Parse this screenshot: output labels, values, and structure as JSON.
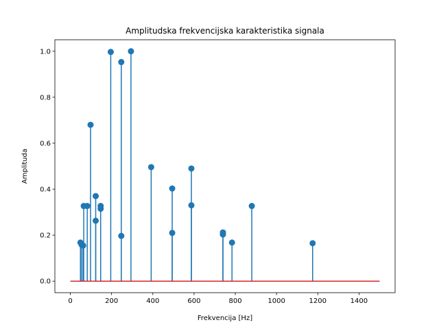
{
  "chart_data": {
    "type": "stem",
    "title": "Amplitudska frekvencijska karakteristika signala",
    "xlabel": "Frekvencija [Hz]",
    "ylabel": "Amplituda",
    "xlim": [
      -75,
      1575
    ],
    "ylim": [
      -0.05,
      1.05
    ],
    "xticks": [
      0,
      200,
      400,
      600,
      800,
      1000,
      1200,
      1400
    ],
    "yticks": [
      0.0,
      0.2,
      0.4,
      0.6,
      0.8,
      1.0
    ],
    "xtick_labels": [
      "0",
      "200",
      "400",
      "600",
      "800",
      "1000",
      "1200",
      "1400"
    ],
    "ytick_labels": [
      "0.0",
      "0.2",
      "0.4",
      "0.6",
      "0.8",
      "1.0"
    ],
    "baseline": {
      "y": 0,
      "x_start": 0,
      "x_end": 1500
    },
    "grid": false,
    "colors": {
      "stem": "#1f77b4",
      "marker": "#1f77b4",
      "baseline": "#d62728"
    },
    "points": [
      {
        "x": 49,
        "y": 0.168
      },
      {
        "x": 55,
        "y": 0.158
      },
      {
        "x": 62,
        "y": 0.155
      },
      {
        "x": 65,
        "y": 0.327
      },
      {
        "x": 82,
        "y": 0.327
      },
      {
        "x": 98,
        "y": 0.68
      },
      {
        "x": 123,
        "y": 0.263
      },
      {
        "x": 123,
        "y": 0.37
      },
      {
        "x": 147,
        "y": 0.315
      },
      {
        "x": 147,
        "y": 0.327
      },
      {
        "x": 196,
        "y": 0.997
      },
      {
        "x": 247,
        "y": 0.953
      },
      {
        "x": 247,
        "y": 0.197
      },
      {
        "x": 294,
        "y": 1.0
      },
      {
        "x": 392,
        "y": 0.496
      },
      {
        "x": 494,
        "y": 0.403
      },
      {
        "x": 494,
        "y": 0.21
      },
      {
        "x": 587,
        "y": 0.49
      },
      {
        "x": 587,
        "y": 0.33
      },
      {
        "x": 740,
        "y": 0.212
      },
      {
        "x": 740,
        "y": 0.203
      },
      {
        "x": 784,
        "y": 0.168
      },
      {
        "x": 880,
        "y": 0.327
      },
      {
        "x": 1175,
        "y": 0.165
      }
    ]
  }
}
